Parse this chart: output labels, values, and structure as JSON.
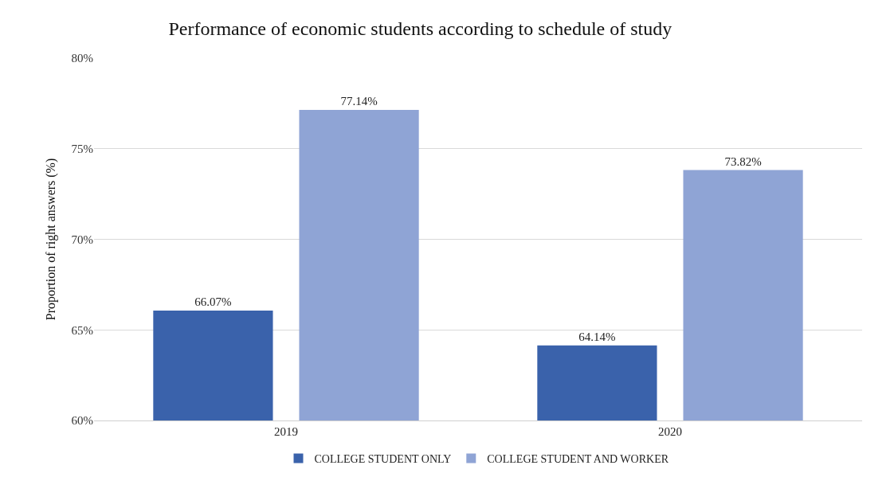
{
  "chart_data": {
    "type": "bar",
    "title": "Performance of economic students according to schedule of study",
    "ylabel": "Proportion of right answers (%)",
    "categories": [
      "2019",
      "2020"
    ],
    "series": [
      {
        "name": "COLLEGE STUDENT ONLY",
        "color": "#3a62ab",
        "values": [
          66.07,
          64.14
        ],
        "value_labels": [
          "66.07%",
          "64.14%"
        ]
      },
      {
        "name": "COLLEGE STUDENT AND WORKER",
        "color": "#8fa4d5",
        "values": [
          77.14,
          73.82
        ],
        "value_labels": [
          "77.14%",
          "73.82%"
        ]
      }
    ],
    "ylim": [
      60,
      80
    ],
    "yticks": [
      {
        "value": 60,
        "label": "60%"
      },
      {
        "value": 65,
        "label": "65%"
      },
      {
        "value": 70,
        "label": "70%"
      },
      {
        "value": 75,
        "label": "75%"
      },
      {
        "value": 80,
        "label": "80%"
      }
    ],
    "grid": "y",
    "legend": "bottom"
  }
}
